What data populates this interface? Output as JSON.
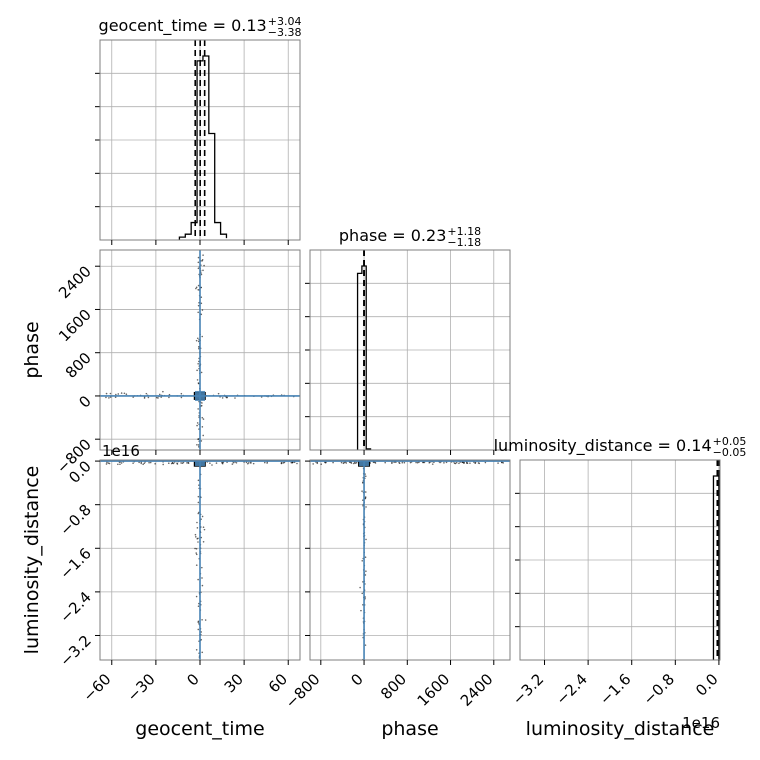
{
  "chart_data": {
    "type": "corner",
    "parameters": [
      "geocent_time",
      "phase",
      "luminosity_distance"
    ],
    "axis_labels": {
      "geocent_time": "geocent_time",
      "phase": "phase",
      "luminosity_distance": "luminosity_distance"
    },
    "ranges": {
      "geocent_time": [
        -68,
        68
      ],
      "phase": [
        -1000,
        2700
      ],
      "luminosity_distance": [
        -3.65,
        0.02
      ]
    },
    "offset_label": "1e16",
    "ticks": {
      "geocent_time": {
        "values": [
          -60,
          -30,
          0,
          30,
          60
        ],
        "labels": [
          "−60",
          "−30",
          "0",
          "30",
          "60"
        ]
      },
      "phase": {
        "values": [
          -800,
          0,
          800,
          1600,
          2400
        ],
        "labels": [
          "−800",
          "0",
          "800",
          "1600",
          "2400"
        ]
      },
      "luminosity_distance": {
        "values": [
          -3.2,
          -2.4,
          -1.6,
          -0.8,
          0.0
        ],
        "labels": [
          "−3.2",
          "−2.4",
          "−1.6",
          "−0.8",
          "0.0"
        ]
      }
    },
    "titles": [
      {
        "param": "geocent_time",
        "text": "geocent_time = 0.13",
        "plus": "+3.04",
        "minus": "−3.38"
      },
      {
        "param": "phase",
        "text": "phase = 0.23",
        "plus": "+1.18",
        "minus": "−1.18"
      },
      {
        "param": "luminosity_distance",
        "text": "luminosity_distance = 0.14",
        "plus": "+0.05",
        "minus": "−0.05"
      }
    ],
    "histograms": {
      "geocent_time": {
        "bin_edges": [
          -14,
          -10,
          -6,
          -2,
          2,
          6,
          10,
          14,
          18
        ],
        "counts": [
          3,
          6,
          18,
          185,
          190,
          110,
          18,
          6,
          2
        ],
        "quantiles": [
          -3.25,
          0.13,
          3.17
        ]
      },
      "phase": {
        "bin_edges": [
          -120,
          -40,
          40,
          120
        ],
        "counts": [
          480,
          500,
          3
        ],
        "quantiles": [
          -1.0,
          0.23,
          1.4
        ]
      },
      "luminosity_distance": {
        "bin_edges": [
          -0.1,
          0.0
        ],
        "counts": [
          520
        ],
        "quantiles": [
          -0.03,
          0.0
        ]
      }
    },
    "scatter_2d": [
      {
        "x": "geocent_time",
        "y": "phase",
        "core_x": [
          -3.4,
          3.1
        ],
        "core_y": [
          -60,
          60
        ],
        "spread_x": [
          -68,
          68
        ],
        "spread_y": [
          -1000,
          2700
        ]
      },
      {
        "x": "geocent_time",
        "y": "luminosity_distance",
        "core_x": [
          -3.4,
          3.1
        ],
        "core_y": [
          -0.06,
          0.0
        ],
        "spread_x": [
          -68,
          68
        ],
        "spread_y": [
          -3.65,
          0.0
        ]
      },
      {
        "x": "phase",
        "y": "luminosity_distance",
        "core_x": [
          -45,
          45
        ],
        "core_y": [
          -0.06,
          0.0
        ],
        "spread_x": [
          -1000,
          2700
        ],
        "spread_y": [
          -3.65,
          0.0
        ]
      }
    ],
    "colors": {
      "histogram": "#000000",
      "truth": "#4682b4",
      "contour": "#000000",
      "grid": "#b0b0b0"
    },
    "grid": true
  }
}
